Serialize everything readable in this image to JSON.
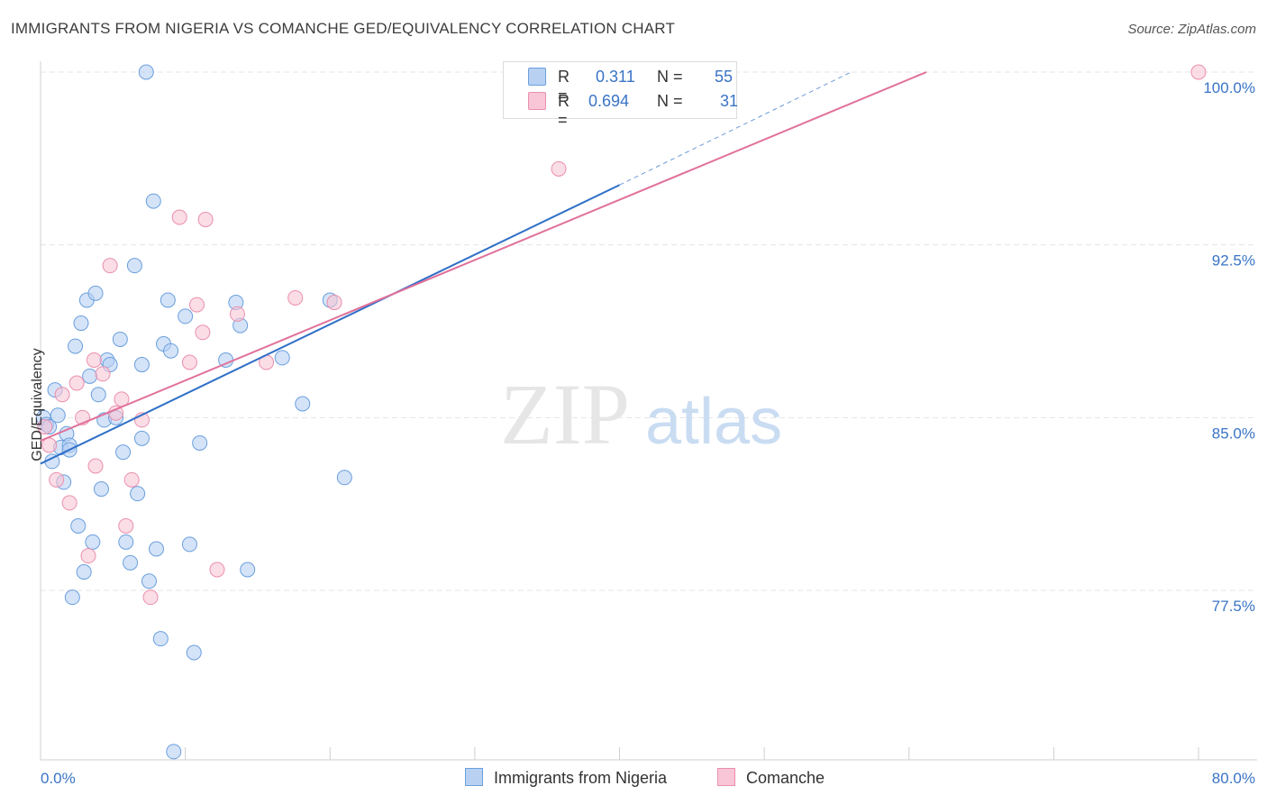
{
  "header": {
    "title": "IMMIGRANTS FROM NIGERIA VS COMANCHE GED/EQUIVALENCY CORRELATION CHART",
    "source": "Source: ZipAtlas.com"
  },
  "watermark": {
    "zip": "ZIP",
    "atlas": "atlas"
  },
  "legend_top": [
    {
      "r_label": "R =",
      "r_value": "0.311",
      "n_label": "N =",
      "n_value": "55"
    },
    {
      "r_label": "R =",
      "r_value": "0.694",
      "n_label": "N =",
      "n_value": "31"
    }
  ],
  "legend_bottom": [
    "Immigrants from Nigeria",
    "Comanche"
  ],
  "colors": {
    "blue_fill": "#b8d1f3",
    "blue_stroke": "#6a9fdd",
    "blue_line": "#2f6fc7",
    "pink_fill": "#f8c6d6",
    "pink_stroke": "#ea8fae",
    "pink_line": "#e0709a",
    "grid": "#e4e4e4",
    "tick_label": "#3a74c6"
  },
  "chart_data": {
    "type": "scatter",
    "title": "IMMIGRANTS FROM NIGERIA VS COMANCHE GED/EQUIVALENCY CORRELATION CHART",
    "xlabel": "",
    "ylabel": "GED/Equivalency",
    "xlim": [
      0,
      80
    ],
    "ylim": [
      70.0,
      101.0
    ],
    "x_tick_labels": [
      "0.0%",
      "80.0%"
    ],
    "y_ticks": [
      77.5,
      85.0,
      92.5,
      100.0
    ],
    "y_tick_labels": [
      "77.5%",
      "85.0%",
      "92.5%",
      "100.0%"
    ],
    "grid": true,
    "legend_position": "top-center",
    "series": [
      {
        "name": "Immigrants from Nigeria",
        "R": 0.311,
        "N": 55,
        "trend": {
          "x0": 0.0,
          "y0": 83.0,
          "x1": 40.0,
          "y1": 95.1,
          "dashed_to_x": 56.0,
          "dashed_to_y": 100.0
        },
        "points": [
          [
            0.2,
            85.0
          ],
          [
            0.4,
            84.7
          ],
          [
            0.6,
            84.6
          ],
          [
            0.8,
            83.1
          ],
          [
            1.0,
            86.2
          ],
          [
            1.2,
            85.1
          ],
          [
            1.4,
            83.7
          ],
          [
            1.6,
            82.2
          ],
          [
            1.8,
            84.3
          ],
          [
            2.0,
            83.8
          ],
          [
            2.2,
            77.2
          ],
          [
            2.4,
            88.1
          ],
          [
            2.6,
            80.3
          ],
          [
            2.8,
            89.1
          ],
          [
            3.0,
            78.3
          ],
          [
            3.2,
            90.1
          ],
          [
            3.4,
            86.8
          ],
          [
            3.6,
            79.6
          ],
          [
            3.8,
            90.4
          ],
          [
            4.0,
            86.0
          ],
          [
            4.2,
            81.9
          ],
          [
            4.4,
            84.9
          ],
          [
            4.6,
            87.5
          ],
          [
            4.8,
            87.3
          ],
          [
            5.2,
            85.0
          ],
          [
            5.5,
            88.4
          ],
          [
            5.7,
            83.5
          ],
          [
            5.9,
            79.6
          ],
          [
            6.2,
            78.7
          ],
          [
            6.5,
            91.6
          ],
          [
            6.7,
            81.7
          ],
          [
            7.0,
            84.1
          ],
          [
            7.3,
            100.0
          ],
          [
            7.5,
            77.9
          ],
          [
            7.8,
            94.4
          ],
          [
            8.0,
            79.3
          ],
          [
            8.3,
            75.4
          ],
          [
            8.5,
            88.2
          ],
          [
            8.8,
            90.1
          ],
          [
            9.0,
            87.9
          ],
          [
            7.0,
            87.3
          ],
          [
            10.0,
            89.4
          ],
          [
            10.3,
            79.5
          ],
          [
            10.6,
            74.8
          ],
          [
            11.0,
            83.9
          ],
          [
            12.8,
            87.5
          ],
          [
            13.5,
            90.0
          ],
          [
            13.8,
            89.0
          ],
          [
            14.3,
            78.4
          ],
          [
            16.7,
            87.6
          ],
          [
            18.1,
            85.6
          ],
          [
            20.0,
            90.1
          ],
          [
            21.0,
            82.4
          ],
          [
            9.2,
            70.5
          ],
          [
            2.0,
            83.6
          ]
        ]
      },
      {
        "name": "Comanche",
        "R": 0.694,
        "N": 31,
        "trend": {
          "x0": 0.0,
          "y0": 84.0,
          "x1": 61.2,
          "y1": 100.0
        },
        "points": [
          [
            0.3,
            84.6
          ],
          [
            0.6,
            83.8
          ],
          [
            1.1,
            82.3
          ],
          [
            1.5,
            86.0
          ],
          [
            2.0,
            81.3
          ],
          [
            2.5,
            86.5
          ],
          [
            2.9,
            85.0
          ],
          [
            3.3,
            79.0
          ],
          [
            3.7,
            87.5
          ],
          [
            3.8,
            82.9
          ],
          [
            4.3,
            86.9
          ],
          [
            4.8,
            91.6
          ],
          [
            5.2,
            85.2
          ],
          [
            5.6,
            85.8
          ],
          [
            5.9,
            80.3
          ],
          [
            6.3,
            82.3
          ],
          [
            7.0,
            84.9
          ],
          [
            7.6,
            77.2
          ],
          [
            9.6,
            93.7
          ],
          [
            10.3,
            87.4
          ],
          [
            10.8,
            89.9
          ],
          [
            11.2,
            88.7
          ],
          [
            11.4,
            93.6
          ],
          [
            12.2,
            78.4
          ],
          [
            13.6,
            89.5
          ],
          [
            15.6,
            87.4
          ],
          [
            17.6,
            90.2
          ],
          [
            20.3,
            90.0
          ],
          [
            33.3,
            100.0
          ],
          [
            35.8,
            95.8
          ],
          [
            80.0,
            100.0
          ]
        ]
      }
    ]
  }
}
